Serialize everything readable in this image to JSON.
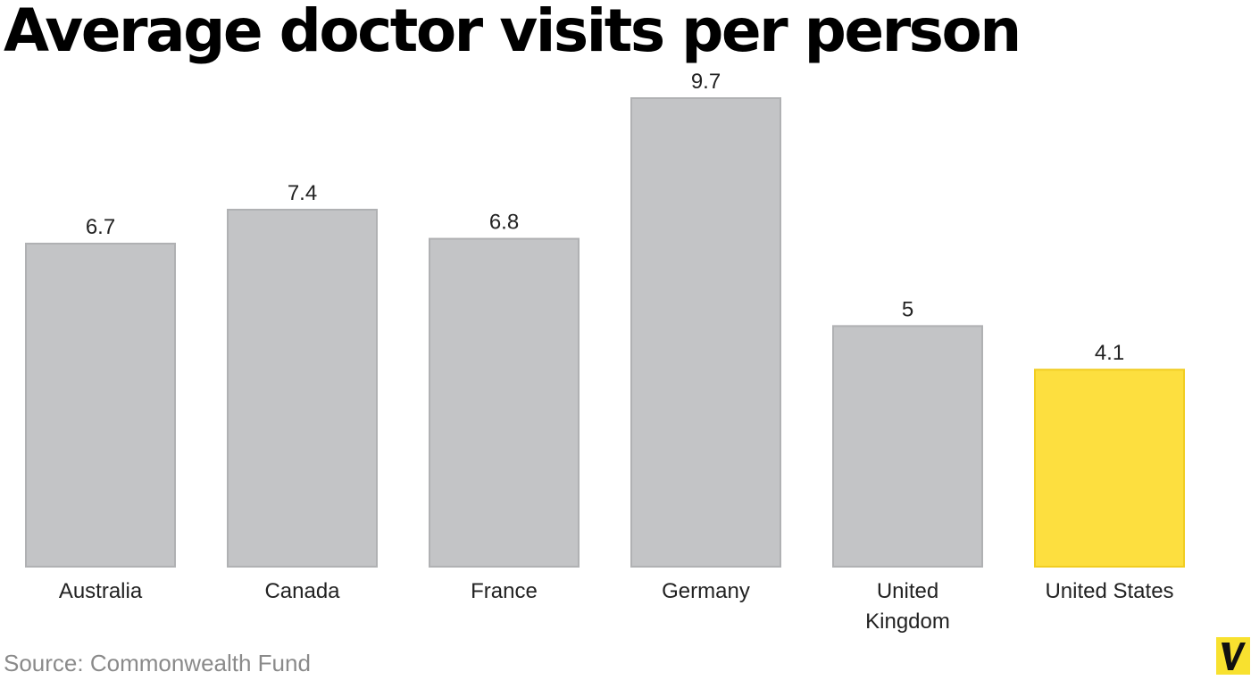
{
  "title": "Average doctor visits per person",
  "source": "Source: Commonwealth Fund",
  "colors": {
    "bar": "#c3c4c6",
    "bar_border": "#b0b1b3",
    "highlight": "#fddf3f",
    "highlight_border": "#f1cd21",
    "text": "#222222",
    "source_text": "#8a8a8a",
    "logo_bg": "#f8e12f"
  },
  "logo": {
    "icon": "vox-v-logo-icon"
  },
  "chart_data": {
    "type": "bar",
    "title": "Average doctor visits per person",
    "xlabel": "",
    "ylabel": "",
    "categories": [
      "Australia",
      "Canada",
      "France",
      "Germany",
      "United Kingdom",
      "United States"
    ],
    "category_lines": [
      [
        "Australia"
      ],
      [
        "Canada"
      ],
      [
        "France"
      ],
      [
        "Germany"
      ],
      [
        "United",
        "Kingdom"
      ],
      [
        "United States"
      ]
    ],
    "values": [
      6.7,
      7.4,
      6.8,
      9.7,
      5,
      4.1
    ],
    "value_labels": [
      "6.7",
      "7.4",
      "6.8",
      "9.7",
      "5",
      "4.1"
    ],
    "highlight": "United States",
    "ylim": [
      0,
      9.7
    ],
    "grid": false,
    "legend": "none"
  }
}
